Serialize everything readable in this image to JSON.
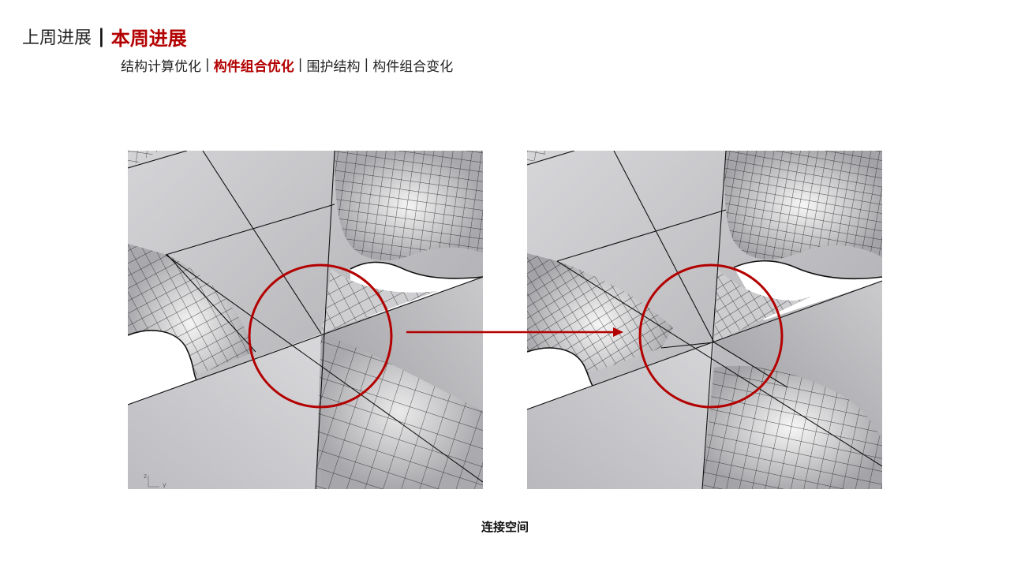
{
  "header": {
    "previous_label": "上周进展",
    "separator": "|",
    "current_label": "本周进展"
  },
  "subnav": {
    "separator": "|",
    "items": [
      {
        "label": "结构计算优化",
        "active": false
      },
      {
        "label": "构件组合优化",
        "active": true
      },
      {
        "label": "围护结构",
        "active": false
      },
      {
        "label": "构件组合变化",
        "active": false
      }
    ]
  },
  "figures": {
    "left_axis_labels": {
      "z": "z",
      "y": "y"
    },
    "caption": "连接空间"
  },
  "colors": {
    "accent": "#b30000",
    "text": "#222222",
    "surface_light": "#d2d2d5",
    "surface_dark": "#9e9ea2",
    "mesh": "#1a1a1a",
    "void": "#ffffff"
  }
}
